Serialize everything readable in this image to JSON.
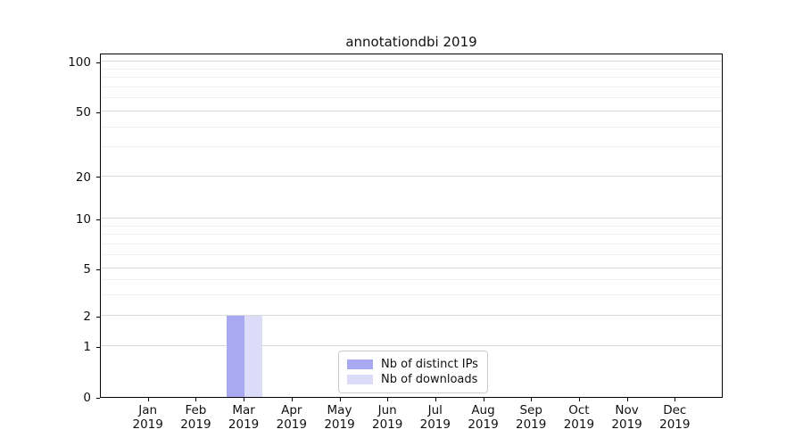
{
  "title": "annotationdbi 2019",
  "chart_data": {
    "type": "bar",
    "title": "annotationdbi 2019",
    "categories": [
      {
        "month": "Jan",
        "year": "2019"
      },
      {
        "month": "Feb",
        "year": "2019"
      },
      {
        "month": "Mar",
        "year": "2019"
      },
      {
        "month": "Apr",
        "year": "2019"
      },
      {
        "month": "May",
        "year": "2019"
      },
      {
        "month": "Jun",
        "year": "2019"
      },
      {
        "month": "Jul",
        "year": "2019"
      },
      {
        "month": "Aug",
        "year": "2019"
      },
      {
        "month": "Sep",
        "year": "2019"
      },
      {
        "month": "Oct",
        "year": "2019"
      },
      {
        "month": "Nov",
        "year": "2019"
      },
      {
        "month": "Dec",
        "year": "2019"
      }
    ],
    "series": [
      {
        "name": "Nb of distinct IPs",
        "color": "#a9a9f2",
        "values": [
          0,
          0,
          2,
          0,
          0,
          0,
          0,
          0,
          0,
          0,
          0,
          0
        ]
      },
      {
        "name": "Nb of downloads",
        "color": "#dcdcf8",
        "values": [
          0,
          0,
          2,
          0,
          0,
          0,
          0,
          0,
          0,
          0,
          0,
          0
        ]
      }
    ],
    "xlabel": "",
    "ylabel": "",
    "yscale": "symlog",
    "ylim": [
      0,
      115
    ],
    "yticks_major": [
      0,
      1,
      2,
      5,
      10,
      20,
      50,
      100
    ],
    "yticks_minor": [
      3,
      4,
      6,
      7,
      8,
      9,
      30,
      40,
      60,
      70,
      80,
      90
    ],
    "grid": true,
    "legend_position": "inside bottom-center"
  },
  "colors": {
    "background": "#ffffff",
    "spine": "#000000",
    "grid_major": "#d9d9d9",
    "grid_minor": "#f1f1f1",
    "bar_distinct_ips": "#a9a9f2",
    "bar_downloads": "#dcdcf8",
    "legend_border": "#cccccc"
  }
}
